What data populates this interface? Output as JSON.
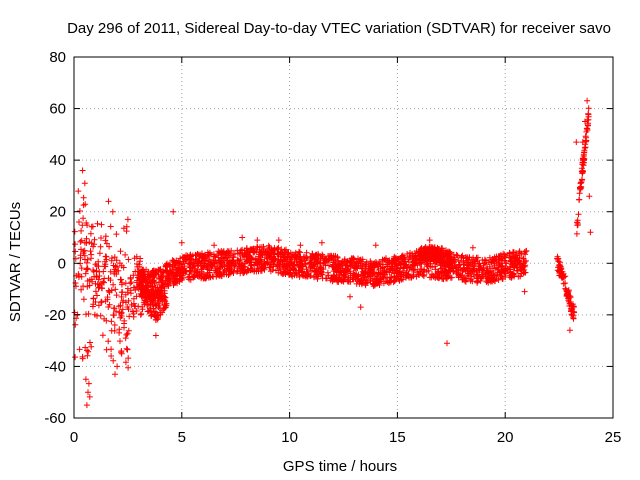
{
  "chart_data": {
    "type": "scatter",
    "title": "Day 296 of 2011, Sidereal Day-to-day VTEC variation (SDTVAR) for receiver savo",
    "xlabel": "GPS time / hours",
    "ylabel": "SDTVAR / TECUs",
    "xlim": [
      0,
      25
    ],
    "ylim": [
      -60,
      80
    ],
    "x_ticks": [
      "0",
      "5",
      "10",
      "15",
      "20",
      "25"
    ],
    "y_ticks": [
      "-60",
      "-40",
      "-20",
      "0",
      "20",
      "40",
      "60",
      "80"
    ],
    "grid": true,
    "marker": "+",
    "series_color": "#ff0000",
    "bands": [
      {
        "x0": 3.0,
        "x1": 21.0,
        "center": [
          [
            3.0,
            -5
          ],
          [
            3.5,
            -8
          ],
          [
            4.0,
            -7
          ],
          [
            4.5,
            -4
          ],
          [
            5.0,
            -2
          ],
          [
            6.0,
            -1
          ],
          [
            7.0,
            0
          ],
          [
            8.0,
            1
          ],
          [
            9.0,
            2
          ],
          [
            10.0,
            0
          ],
          [
            11.0,
            -1
          ],
          [
            12.0,
            -2
          ],
          [
            13.0,
            -3
          ],
          [
            14.0,
            -4
          ],
          [
            15.0,
            -2
          ],
          [
            16.0,
            0
          ],
          [
            17.0,
            -1
          ],
          [
            18.0,
            -2
          ],
          [
            19.0,
            -3
          ],
          [
            20.0,
            -1
          ],
          [
            21.0,
            0
          ]
        ],
        "halfwidth": 5
      },
      {
        "x0": 3.0,
        "x1": 4.3,
        "center": [
          [
            3.0,
            -5
          ],
          [
            3.4,
            -14
          ],
          [
            3.8,
            -18
          ],
          [
            4.3,
            -12
          ]
        ],
        "halfwidth": 5
      },
      {
        "x0": 16.0,
        "x1": 17.5,
        "center": [
          [
            16.0,
            3
          ],
          [
            16.5,
            4
          ],
          [
            17.0,
            3
          ],
          [
            17.5,
            2
          ]
        ],
        "halfwidth": 3
      },
      {
        "x0": 22.4,
        "x1": 23.2,
        "center": [
          [
            22.4,
            0
          ],
          [
            22.7,
            -5
          ],
          [
            23.0,
            -15
          ],
          [
            23.2,
            -20
          ]
        ],
        "halfwidth": 3
      },
      {
        "x0": 23.3,
        "x1": 23.9,
        "center": [
          [
            23.3,
            10
          ],
          [
            23.5,
            30
          ],
          [
            23.7,
            45
          ],
          [
            23.9,
            60
          ]
        ],
        "halfwidth": 3
      }
    ],
    "clusters": [
      {
        "x0": 0.0,
        "x1": 0.8,
        "ymin": -55,
        "ymax": 36
      },
      {
        "x0": 0.8,
        "x1": 1.5,
        "ymin": -30,
        "ymax": 20
      },
      {
        "x0": 1.5,
        "x1": 2.6,
        "ymin": -43,
        "ymax": 17
      },
      {
        "x0": 2.6,
        "x1": 3.2,
        "ymin": -25,
        "ymax": 5
      }
    ],
    "outliers": [
      [
        0.4,
        36
      ],
      [
        0.2,
        28
      ],
      [
        0.5,
        31
      ],
      [
        0.6,
        -55
      ],
      [
        0.65,
        -50
      ],
      [
        0.55,
        -45
      ],
      [
        1.6,
        24
      ],
      [
        1.8,
        20
      ],
      [
        2.5,
        17
      ],
      [
        1.9,
        -43
      ],
      [
        2.0,
        -40
      ],
      [
        2.2,
        -34
      ],
      [
        4.6,
        20
      ],
      [
        3.8,
        -28
      ],
      [
        17.3,
        -31
      ],
      [
        13.3,
        -17
      ],
      [
        12.8,
        -13
      ],
      [
        20.9,
        -11
      ],
      [
        8.5,
        9
      ],
      [
        9.5,
        9
      ],
      [
        11.5,
        8
      ],
      [
        14.0,
        7
      ],
      [
        16.5,
        9
      ],
      [
        18.5,
        6
      ],
      [
        20.5,
        4
      ],
      [
        6.5,
        7
      ],
      [
        7.8,
        10
      ],
      [
        5.0,
        8
      ],
      [
        10.5,
        7
      ],
      [
        23.0,
        -26
      ],
      [
        23.3,
        47
      ],
      [
        23.6,
        47
      ],
      [
        23.9,
        26
      ],
      [
        23.95,
        12
      ],
      [
        23.8,
        63
      ],
      [
        23.7,
        55
      ],
      [
        23.5,
        29
      ],
      [
        23.4,
        19
      ],
      [
        23.85,
        58
      ]
    ]
  }
}
